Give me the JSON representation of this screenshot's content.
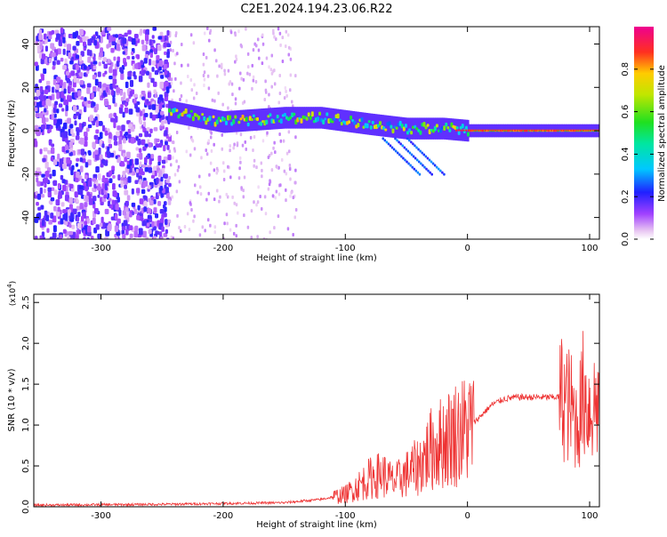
{
  "title": "C2E1.2024.194.23.06.R22",
  "chart_data": [
    {
      "type": "heatmap",
      "xlabel": "Height of straight line (km)",
      "ylabel": "Frequency (Hz)",
      "xlim": [
        -355,
        108
      ],
      "ylim": [
        -50,
        48
      ],
      "xticks": [
        -300,
        -200,
        -100,
        0,
        100
      ],
      "yticks": [
        -40,
        -20,
        0,
        20,
        40
      ],
      "colorbar": {
        "label": "Normalized spectral amplitude",
        "range": [
          0,
          1
        ],
        "ticks": [
          "0.0",
          "0.2",
          "0.4",
          "0.6",
          "0.8"
        ],
        "tick_values": [
          0.0,
          0.2,
          0.4,
          0.6,
          0.8
        ],
        "colormap": "rainbow"
      },
      "features": [
        {
          "name": "noise",
          "x_range": [
            -355,
            -245
          ],
          "freq_range": [
            -50,
            48
          ],
          "amplitude": 0.2
        },
        {
          "name": "sparse-noise",
          "x_range": [
            -245,
            -140
          ],
          "freq_range": [
            -50,
            48
          ],
          "amplitude": 0.08
        },
        {
          "name": "signal-track",
          "x_range": [
            -245,
            108
          ],
          "centre_freq": [
            [
              -245,
              9
            ],
            [
              -200,
              4
            ],
            [
              -150,
              6
            ],
            [
              -120,
              6
            ],
            [
              -80,
              3
            ],
            [
              -50,
              1
            ],
            [
              -20,
              1
            ],
            [
              0,
              0
            ],
            [
              108,
              0
            ]
          ],
          "amplitude": 0.7
        }
      ]
    },
    {
      "type": "line",
      "xlabel": "Height of straight line (km)",
      "ylabel": "SNR (10 * v/v)",
      "yscale_label": "(x10",
      "yscale_exp": "4",
      "ylabel_sup": ")",
      "xlim": [
        -355,
        108
      ],
      "ylim": [
        0,
        26000
      ],
      "xticks": [
        -300,
        -200,
        -100,
        0,
        100
      ],
      "yticks": [
        0,
        5000,
        10000,
        15000,
        20000,
        25000
      ],
      "ytick_labels": [
        "0.0",
        "0.5",
        "1.0",
        "1.5",
        "2.0",
        "2.5"
      ],
      "color": "#ee3333",
      "x": [
        -355,
        -300,
        -250,
        -200,
        -150,
        -120,
        -100,
        -90,
        -80,
        -70,
        -60,
        -50,
        -40,
        -30,
        -20,
        -10,
        0,
        10,
        20,
        30,
        40,
        50,
        60,
        70,
        78,
        85,
        90,
        95,
        100,
        108
      ],
      "y": [
        200,
        250,
        300,
        400,
        500,
        900,
        1500,
        2500,
        3500,
        4000,
        3000,
        4000,
        5000,
        7000,
        8000,
        9000,
        9500,
        11000,
        12500,
        13200,
        13400,
        13400,
        13400,
        13400,
        13500,
        12000,
        10000,
        14000,
        12000,
        13000
      ]
    }
  ]
}
